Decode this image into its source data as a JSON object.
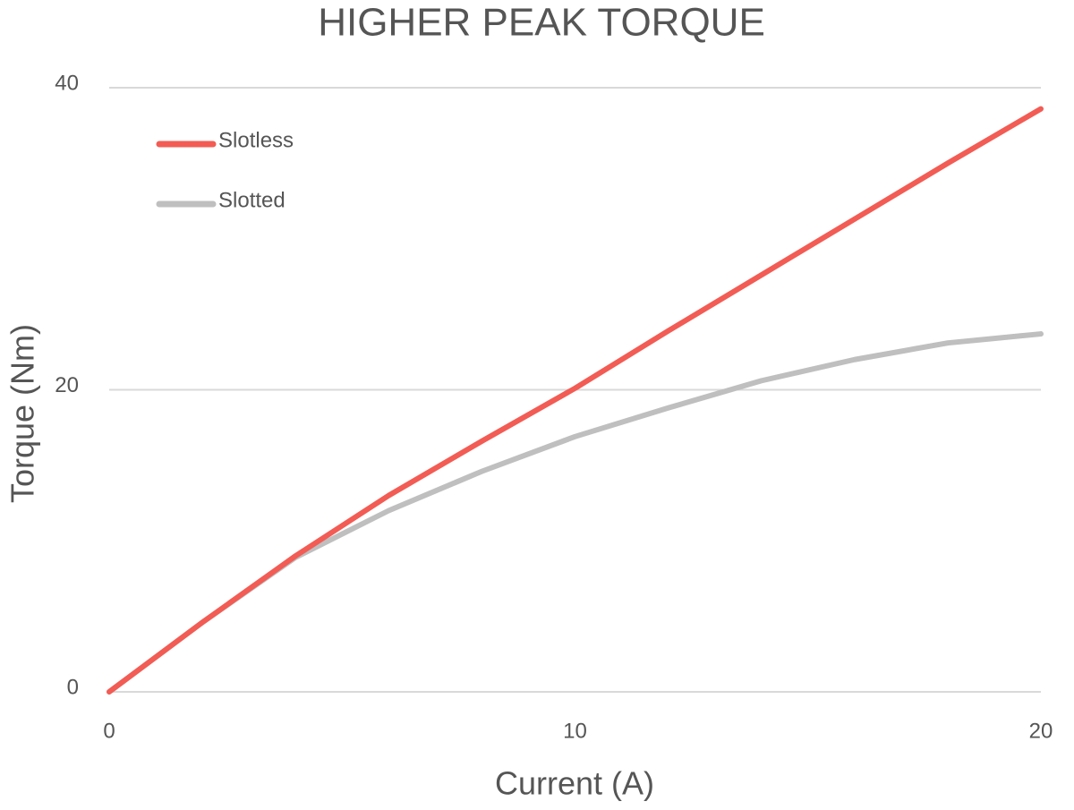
{
  "chart_data": {
    "type": "line",
    "title": "HIGHER PEAK TORQUE",
    "x_label": "Current (A)",
    "y_label": "Torque (Nm)",
    "x": [
      0,
      2,
      4,
      6,
      8,
      10,
      12,
      14,
      16,
      18,
      20
    ],
    "series": [
      {
        "name": "Slotless",
        "color": "#f25c54",
        "values": [
          0,
          4.6,
          9.0,
          13.0,
          16.6,
          20.1,
          23.9,
          27.6,
          31.3,
          35.0,
          38.6
        ]
      },
      {
        "name": "Slotted",
        "color": "#bfbfbf",
        "values": [
          0,
          4.6,
          8.9,
          12.0,
          14.6,
          16.9,
          18.8,
          20.6,
          22.0,
          23.1,
          23.7
        ]
      }
    ],
    "xlim": [
      0,
      20
    ],
    "xticks": [
      0,
      10,
      20
    ],
    "ylim": [
      0,
      40
    ],
    "yticks": [
      0,
      20,
      40
    ],
    "grid": true,
    "legend": "top-left"
  }
}
